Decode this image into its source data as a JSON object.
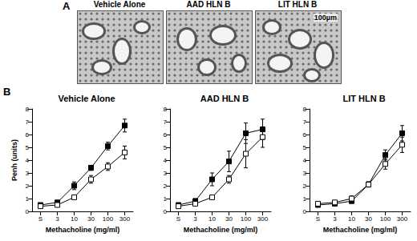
{
  "panel_a": {
    "label": "A",
    "images": [
      {
        "title": "Vehicle Alone"
      },
      {
        "title": "AAD HLN B"
      },
      {
        "title": "LIT HLN B"
      }
    ],
    "scale_bar": "100µm"
  },
  "panel_b": {
    "label": "B"
  },
  "chart_data": [
    {
      "type": "line",
      "title": "Vehicle Alone",
      "x_label": "Methacholine (mg/ml)",
      "y_label": "Penh (units)",
      "categories": [
        "S",
        "3",
        "10",
        "30",
        "100",
        "300"
      ],
      "ylim": [
        0,
        8
      ],
      "yticks": [
        0,
        1,
        2,
        3,
        4,
        5,
        6,
        7,
        8
      ],
      "grid": false,
      "tick_labels": true,
      "series": [
        {
          "color": "#000000",
          "marker": "square",
          "values": [
            0.5,
            0.7,
            2.0,
            3.4,
            5.1,
            6.7
          ],
          "errors": [
            0.1,
            0.1,
            0.3,
            0.2,
            0.3,
            0.5
          ]
        },
        {
          "color": "#000000",
          "marker": "open_square",
          "values": [
            0.4,
            0.5,
            1.1,
            2.5,
            3.5,
            4.6
          ],
          "errors": [
            0.1,
            0.1,
            0.1,
            0.3,
            0.3,
            0.5
          ]
        }
      ]
    },
    {
      "type": "line",
      "title": "AAD HLN B",
      "x_label": "Methacholine (mg/ml)",
      "categories": [
        "S",
        "3",
        "10",
        "30",
        "100",
        "300"
      ],
      "ylim": [
        0,
        8
      ],
      "yticks": [
        0,
        1,
        2,
        3,
        4,
        5,
        6,
        7,
        8
      ],
      "grid": false,
      "tick_labels": true,
      "series": [
        {
          "color": "#000000",
          "marker": "square",
          "values": [
            0.5,
            0.8,
            2.5,
            3.9,
            6.1,
            6.4
          ],
          "errors": [
            0.1,
            0.2,
            0.5,
            0.8,
            0.8,
            0.8
          ]
        },
        {
          "color": "#000000",
          "marker": "open_square",
          "values": [
            0.4,
            0.6,
            1.1,
            2.5,
            4.5,
            5.8
          ],
          "errors": [
            0.1,
            0.1,
            0.1,
            0.3,
            1.1,
            0.8
          ]
        }
      ]
    },
    {
      "type": "line",
      "title": "LIT HLN B",
      "x_label": "Methacholine (mg/ml)",
      "categories": [
        "S",
        "3",
        "10",
        "30",
        "100",
        "300"
      ],
      "ylim": [
        0,
        8
      ],
      "yticks": [
        0,
        1,
        2,
        3,
        4,
        5,
        6,
        7,
        8
      ],
      "grid": false,
      "tick_labels": true,
      "series": [
        {
          "color": "#000000",
          "marker": "square",
          "values": [
            0.5,
            0.6,
            0.8,
            2.1,
            4.4,
            6.1
          ],
          "errors": [
            0.1,
            0.1,
            0.1,
            0.2,
            0.4,
            0.6
          ]
        },
        {
          "color": "#000000",
          "marker": "open_square",
          "values": [
            0.6,
            0.7,
            1.0,
            2.1,
            3.7,
            5.2
          ],
          "errors": [
            0.1,
            0.1,
            0.2,
            0.2,
            0.4,
            0.6
          ]
        }
      ]
    }
  ]
}
